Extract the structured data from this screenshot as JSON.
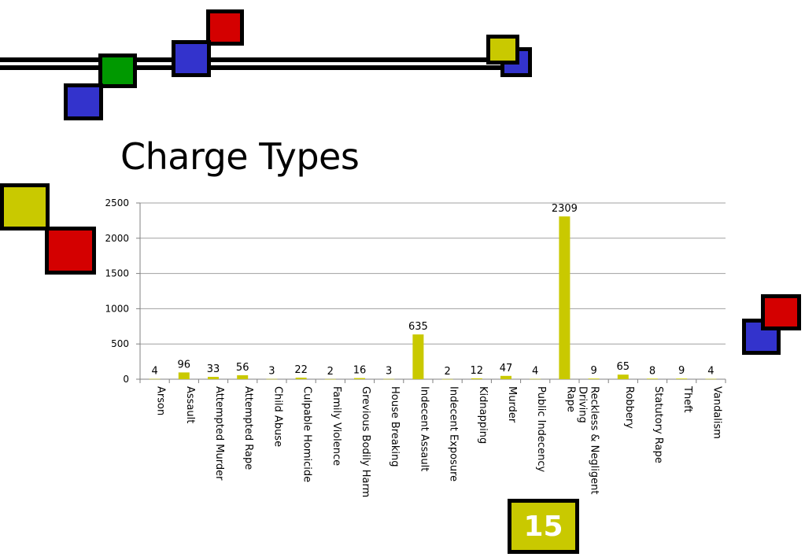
{
  "slide": {
    "title": "Charge Types",
    "number": "15"
  },
  "colors": {
    "bar": "#c9c900",
    "yellow": "#c9c900",
    "red": "#d40000",
    "blue": "#3333cc",
    "green": "#009900",
    "gridline": "#a0a0a0"
  },
  "chart_data": {
    "type": "bar",
    "title": "",
    "xlabel": "",
    "ylabel": "",
    "ylim": [
      0,
      2500
    ],
    "yticks": [
      0,
      500,
      1000,
      1500,
      2000,
      2500
    ],
    "grid": true,
    "categories": [
      "Arson",
      "Assault",
      "Attempted Murder",
      "Attempted Rape",
      "Child Abuse",
      "Culpable Homicide",
      "Family Violence",
      "Grevious Bodily Harm",
      "House Breaking",
      "Indecent Assault",
      "Indecent Exposure",
      "Kidnapping",
      "Murder",
      "Public Indecency",
      "Rape",
      "Reckless & Negligent Driving",
      "Robbery",
      "Statutory Rape",
      "Theft",
      "Vandalism"
    ],
    "category_lines": [
      [
        "Arson"
      ],
      [
        "Assault"
      ],
      [
        "Attempted Murder"
      ],
      [
        "Attempted Rape"
      ],
      [
        "Child Abuse"
      ],
      [
        "Culpable Homicide"
      ],
      [
        "Family Violence"
      ],
      [
        "Grevious Bodily Harm"
      ],
      [
        "House Breaking"
      ],
      [
        "Indecent Assault"
      ],
      [
        "Indecent Exposure"
      ],
      [
        "Kidnapping"
      ],
      [
        "Murder"
      ],
      [
        "Public Indecency"
      ],
      [
        "Rape"
      ],
      [
        "Reckless & Negligent",
        "Driving"
      ],
      [
        "Robbery"
      ],
      [
        "Statutory Rape"
      ],
      [
        "Theft"
      ],
      [
        "Vandalism"
      ]
    ],
    "values": [
      4,
      96,
      33,
      56,
      3,
      22,
      2,
      16,
      3,
      635,
      2,
      12,
      47,
      4,
      2309,
      9,
      65,
      8,
      9,
      4
    ]
  }
}
